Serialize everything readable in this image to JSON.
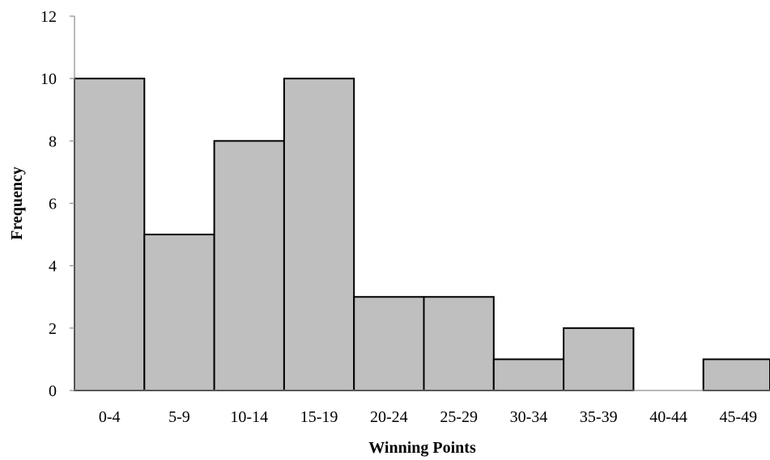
{
  "chart_data": {
    "type": "bar",
    "categories": [
      "0-4",
      "5-9",
      "10-14",
      "15-19",
      "20-24",
      "25-29",
      "30-34",
      "35-39",
      "40-44",
      "45-49"
    ],
    "values": [
      10,
      5,
      8,
      10,
      3,
      3,
      1,
      2,
      0,
      1
    ],
    "xlabel": "Winning Points",
    "ylabel": "Frequency",
    "ylim": [
      0,
      12
    ],
    "yticks": [
      "0",
      "2",
      "4",
      "6",
      "8",
      "10",
      "12"
    ],
    "grid": false,
    "legend": "none",
    "bar_color": "#bfbfbf",
    "bar_edge_color": "#000000",
    "axis_color": "#8c8c8c"
  }
}
